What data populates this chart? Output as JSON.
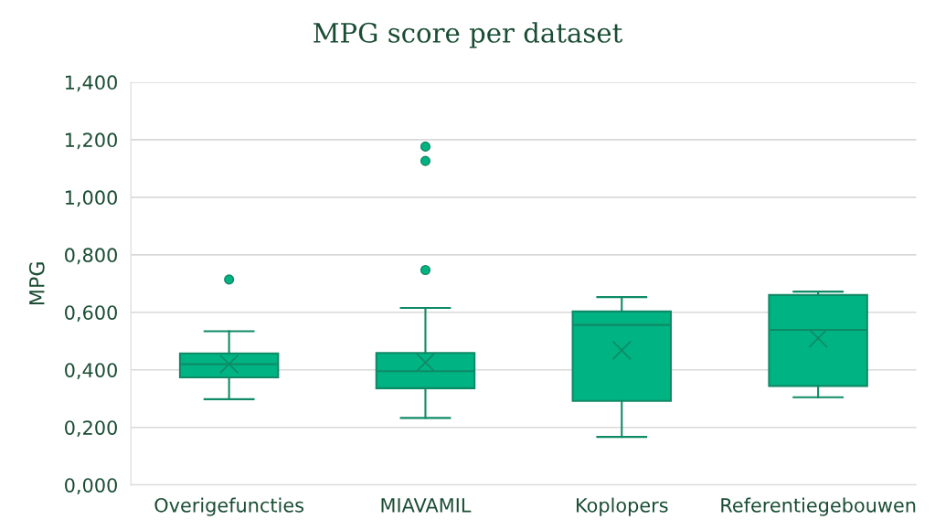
{
  "chart_data": {
    "type": "box",
    "title": "MPG score per dataset",
    "ylabel": "MPG",
    "categories": [
      "Overigefuncties",
      "MIAVAMIL",
      "Koplopers",
      "Referentiegebouwen"
    ],
    "series": [
      {
        "color": "#00b383",
        "boxes": [
          {
            "low": 0.298,
            "q1": 0.374,
            "median": 0.42,
            "q3": 0.457,
            "high": 0.534,
            "mean": 0.42,
            "outliers": [
              0.714
            ]
          },
          {
            "low": 0.233,
            "q1": 0.336,
            "median": 0.395,
            "q3": 0.459,
            "high": 0.615,
            "mean": 0.426,
            "outliers": [
              0.747,
              1.126,
              1.176
            ]
          },
          {
            "low": 0.167,
            "q1": 0.292,
            "median": 0.556,
            "q3": 0.603,
            "high": 0.653,
            "mean": 0.468
          },
          {
            "low": 0.305,
            "q1": 0.344,
            "median": 0.539,
            "q3": 0.66,
            "high": 0.672,
            "mean": 0.51
          }
        ]
      }
    ],
    "ylim": [
      0,
      1.4
    ],
    "yticks": [
      {
        "value": 0,
        "label": "0,000"
      },
      {
        "value": 0.2,
        "label": "0,200"
      },
      {
        "value": 0.4,
        "label": "0,400"
      },
      {
        "value": 0.6,
        "label": "0,600"
      },
      {
        "value": 0.8,
        "label": "0,800"
      },
      {
        "value": 1.0,
        "label": "1,000"
      },
      {
        "value": 1.2,
        "label": "1,200"
      },
      {
        "value": 1.4,
        "label": "1,400"
      }
    ],
    "grid": "y",
    "legend": false
  }
}
